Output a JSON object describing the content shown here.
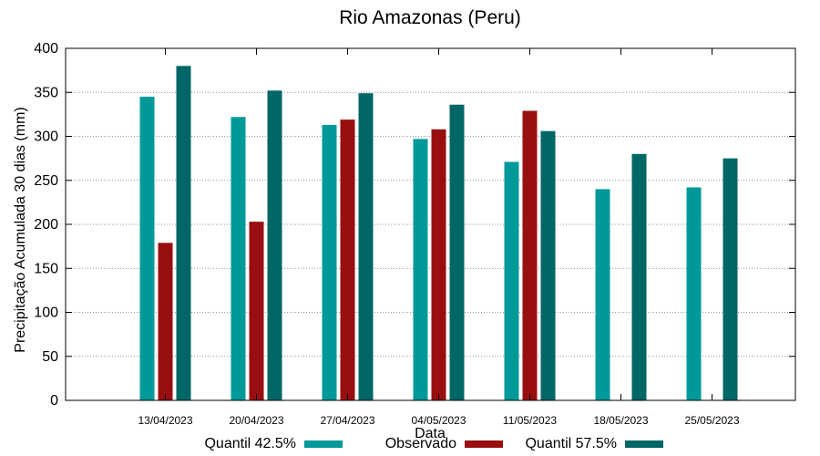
{
  "chart_data": {
    "type": "bar",
    "title": "Rio Amazonas (Peru)",
    "xlabel": "Data",
    "ylabel": "Precipitação Acumulada 30 dias (mm)",
    "ylim": [
      0,
      400
    ],
    "yticks": [
      0,
      50,
      100,
      150,
      200,
      250,
      300,
      350,
      400
    ],
    "grid": true,
    "legend_position": "bottom",
    "categories": [
      "13/04/2023",
      "20/04/2023",
      "27/04/2023",
      "04/05/2023",
      "11/05/2023",
      "18/05/2023",
      "25/05/2023"
    ],
    "series": [
      {
        "name": "Quantil 42.5%",
        "color": "#009999",
        "values": [
          345,
          322,
          313,
          297,
          271,
          240,
          242
        ]
      },
      {
        "name": "Observado",
        "color": "#990f0f",
        "values": [
          179,
          203,
          319,
          308,
          329,
          null,
          null
        ]
      },
      {
        "name": "Quantil 57.5%",
        "color": "#006666",
        "values": [
          380,
          352,
          349,
          336,
          306,
          280,
          275
        ]
      }
    ]
  }
}
